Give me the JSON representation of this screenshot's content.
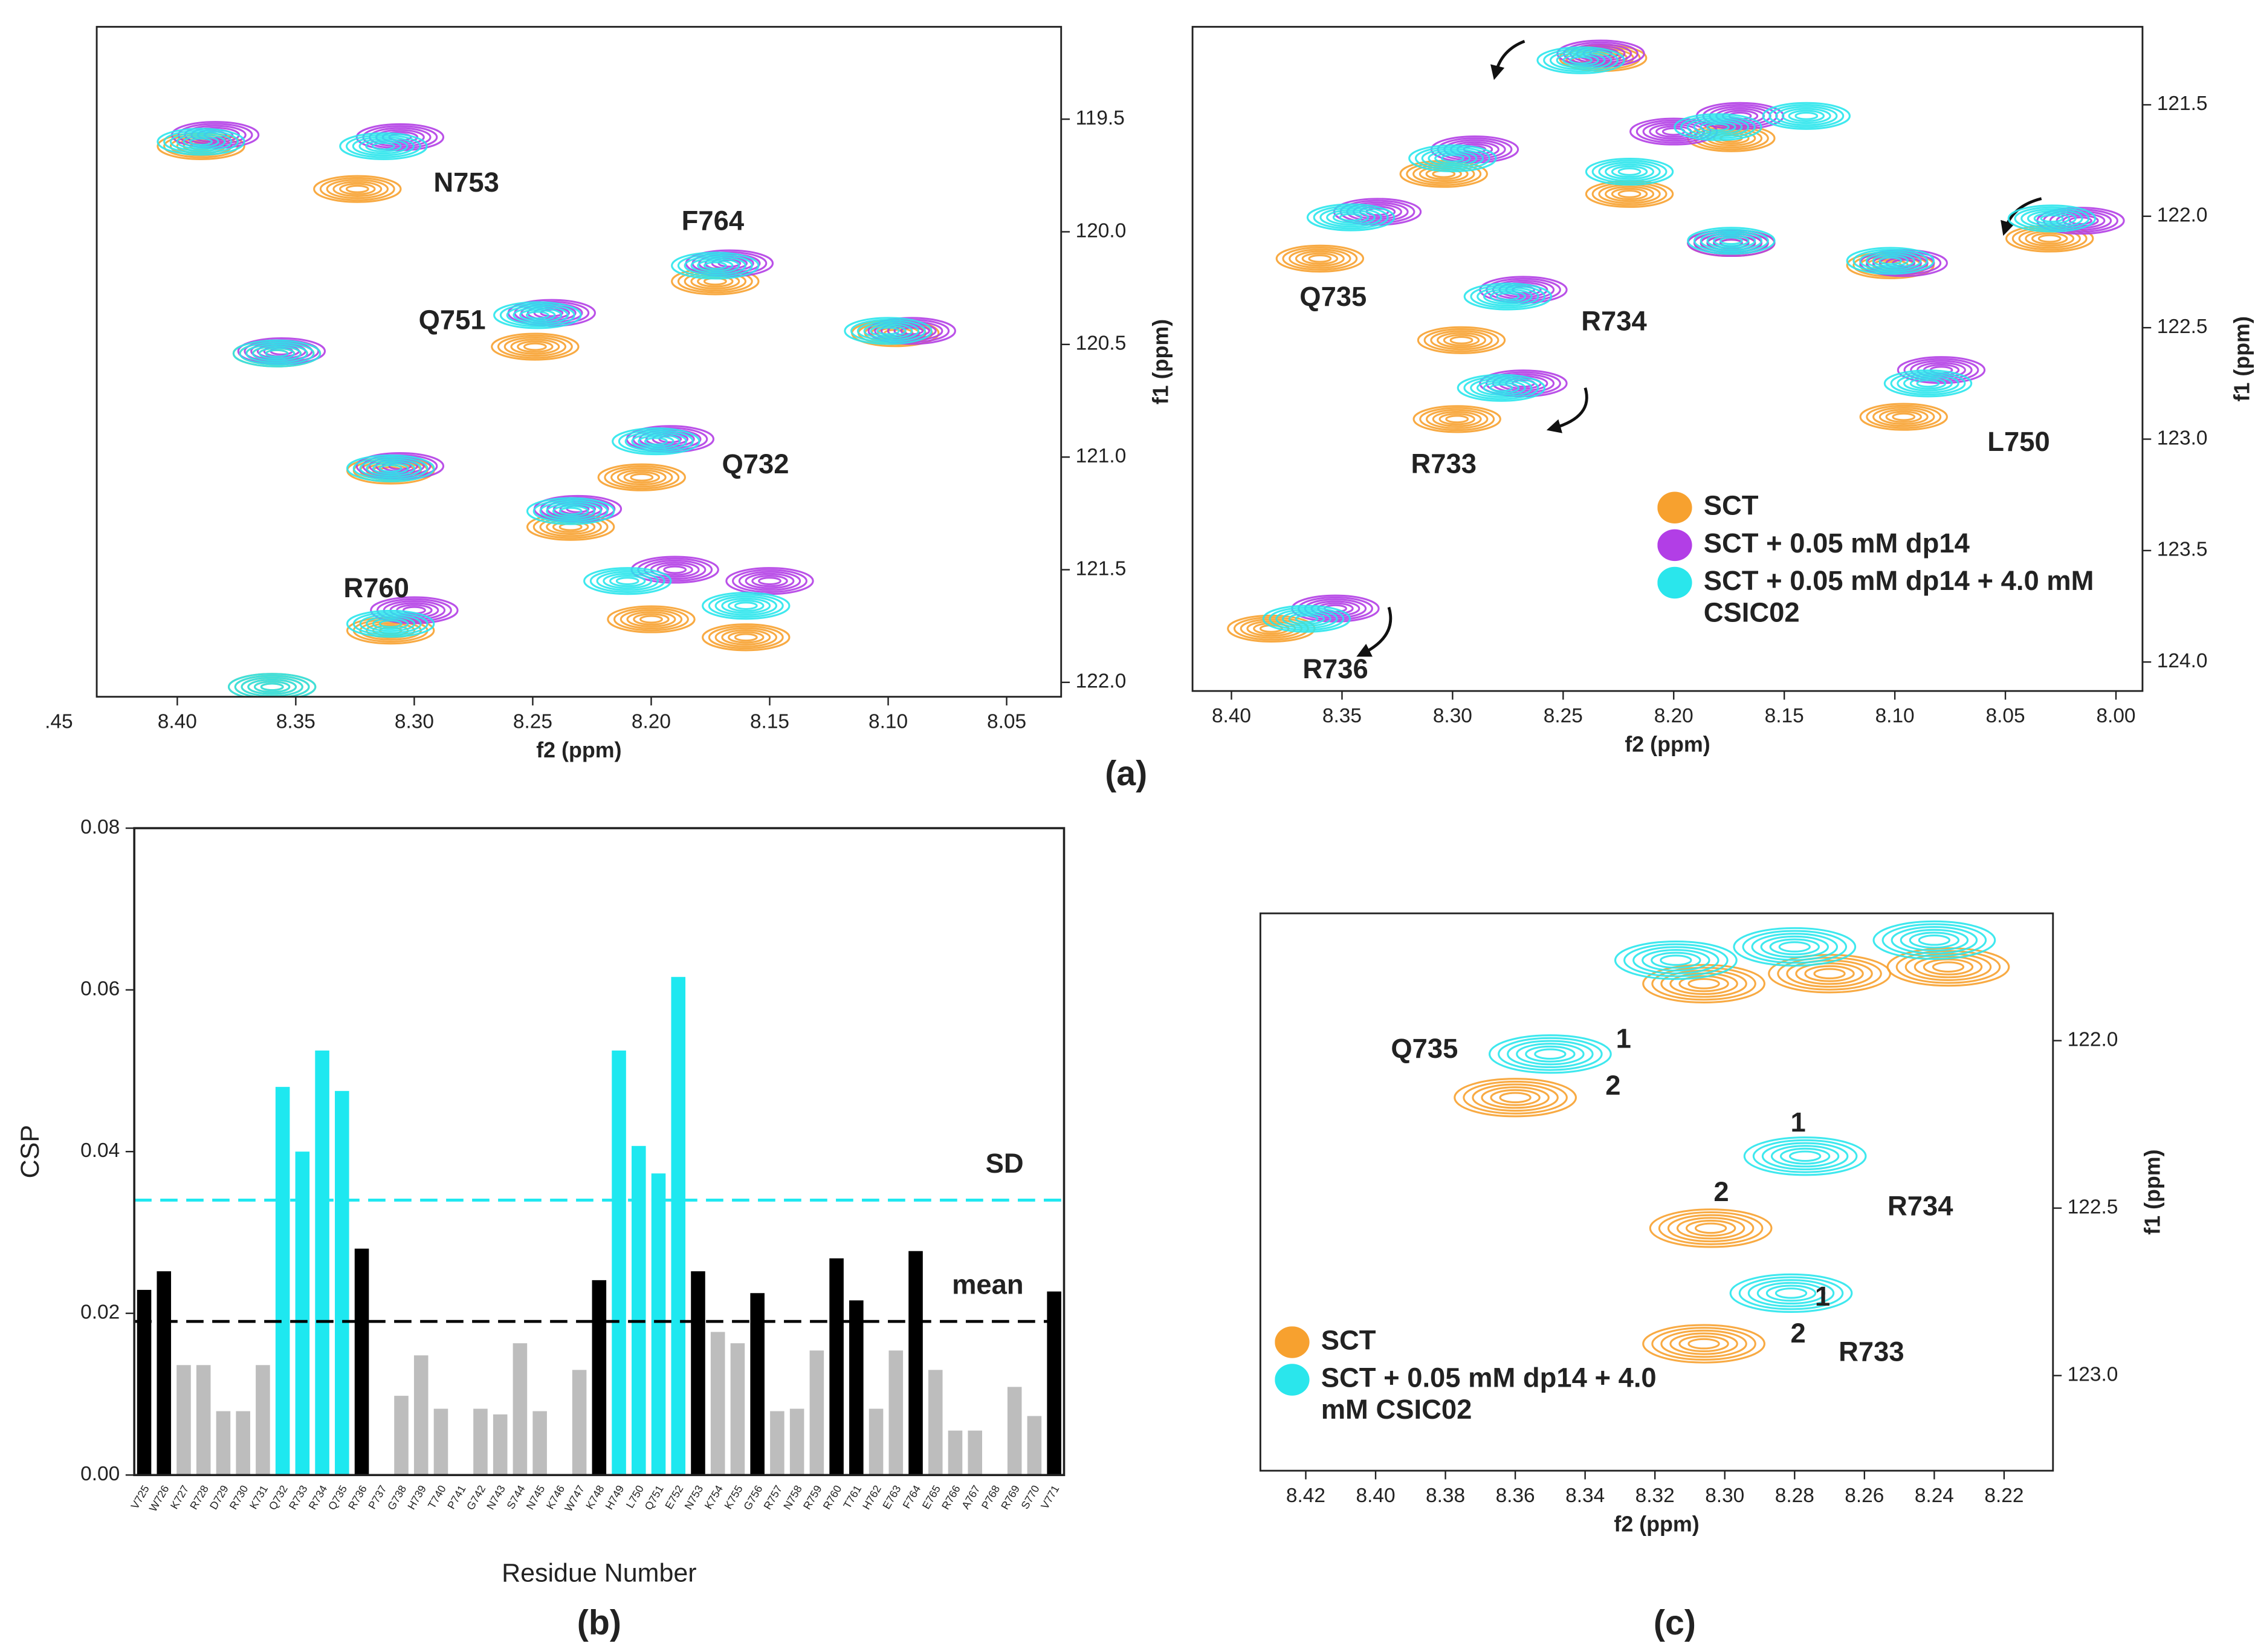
{
  "chart_data": [
    {
      "type": "contour",
      "xlabel": "f2 (ppm)",
      "ylabel": "f1 (ppm)",
      "xlim": [
        8.434,
        8.027
      ],
      "ylim": [
        119.09,
        122.064
      ],
      "xticks": [
        {
          "value": 8.45,
          "label": ".45"
        },
        {
          "value": 8.4,
          "label": "8.40"
        },
        8.35,
        {
          "value": 8.3,
          "label": "8.30"
        },
        8.25,
        {
          "value": 8.2,
          "label": "8.20"
        },
        8.15,
        {
          "value": 8.1,
          "label": "8.10"
        },
        8.05
      ],
      "yticks": [
        119.5,
        {
          "value": 120,
          "label": "120.0"
        },
        120.5,
        {
          "value": 121,
          "label": "121.0"
        },
        121.5,
        {
          "value": 122,
          "label": "122.0"
        }
      ],
      "series": [
        {
          "color": "#f7a12f",
          "x": [
            8.39,
            8.324,
            8.173,
            8.249,
            8.358,
            8.097,
            8.31,
            8.204,
            8.234,
            8.31,
            8.2,
            8.16,
            8.36
          ],
          "y": [
            119.62,
            119.81,
            120.22,
            120.51,
            120.54,
            120.45,
            121.06,
            121.09,
            121.31,
            121.77,
            121.72,
            121.8,
            122.02
          ]
        },
        {
          "color": "#b23ee6",
          "x": [
            8.384,
            8.306,
            8.167,
            8.242,
            8.356,
            8.09,
            8.306,
            8.192,
            8.231,
            8.3,
            8.19,
            8.15
          ],
          "y": [
            119.57,
            119.58,
            120.14,
            120.36,
            120.53,
            120.44,
            121.04,
            120.92,
            121.23,
            121.68,
            121.5,
            121.55
          ]
        },
        {
          "color": "#2ae6ec",
          "x": [
            8.39,
            8.313,
            8.173,
            8.248,
            8.358,
            8.1,
            8.31,
            8.198,
            8.234,
            8.31,
            8.21,
            8.16,
            8.36
          ],
          "y": [
            119.6,
            119.62,
            120.15,
            120.37,
            120.54,
            120.44,
            121.05,
            120.93,
            121.24,
            121.74,
            121.55,
            121.66,
            122.02
          ]
        }
      ],
      "annotations": [
        {
          "text": "N753",
          "x": 8.278,
          "y": 119.79
        },
        {
          "text": "F764",
          "x": 8.174,
          "y": 119.96
        },
        {
          "text": "Q751",
          "x": 8.284,
          "y": 120.4
        },
        {
          "text": "Q732",
          "x": 8.156,
          "y": 121.04
        },
        {
          "text": "R760",
          "x": 8.316,
          "y": 121.59
        }
      ]
    },
    {
      "type": "contour",
      "xlabel": "f2 (ppm)",
      "ylabel": "f1 (ppm)",
      "caption": "(a)",
      "xlim": [
        8.4176,
        7.988
      ],
      "ylim": [
        121.15,
        124.13
      ],
      "xticks": [
        {
          "value": 8.4,
          "label": "8.40"
        },
        8.35,
        {
          "value": 8.3,
          "label": "8.30"
        },
        8.25,
        {
          "value": 8.2,
          "label": "8.20"
        },
        8.15,
        {
          "value": 8.1,
          "label": "8.10"
        },
        8.05,
        {
          "value": 8,
          "label": "8.00"
        }
      ],
      "yticks": [
        121.5,
        {
          "value": 122,
          "label": "122.0"
        },
        122.5,
        {
          "value": 123,
          "label": "123.0"
        },
        123.5,
        {
          "value": 124,
          "label": "124.0"
        }
      ],
      "legend": "lower right",
      "series": [
        {
          "name": "SCT",
          "color": "#f7a12f",
          "x": [
            8.36,
            8.296,
            8.298,
            8.382,
            8.096,
            8.03,
            8.102,
            8.174,
            8.232,
            8.304,
            8.174,
            8.22
          ],
          "y": [
            122.19,
            122.556,
            122.91,
            123.85,
            122.9,
            122.1,
            122.22,
            122.12,
            121.29,
            121.81,
            121.65,
            121.9
          ]
        },
        {
          "name": "SCT + 0.05 mM dp14",
          "color": "#b23ee6",
          "x": [
            8.334,
            8.268,
            8.268,
            8.353,
            8.079,
            8.016,
            8.096,
            8.174,
            8.233,
            8.29,
            8.17,
            8.2
          ],
          "y": [
            121.98,
            122.33,
            122.75,
            123.76,
            122.69,
            122.02,
            122.21,
            122.12,
            121.27,
            121.7,
            121.55,
            121.62
          ]
        },
        {
          "name": "SCT + 0.05 mM dp14 + 4.0 mM CSIC02",
          "color": "#2ae6ec",
          "x": [
            8.346,
            8.275,
            8.278,
            8.366,
            8.085,
            8.029,
            8.102,
            8.174,
            8.242,
            8.3,
            8.18,
            8.22,
            8.14
          ],
          "y": [
            122.005,
            122.36,
            122.77,
            123.806,
            122.75,
            122.01,
            122.2,
            122.11,
            121.3,
            121.74,
            121.6,
            121.8,
            121.55
          ]
        }
      ],
      "annotations": [
        {
          "text": "Q735",
          "x": 8.354,
          "y": 122.37
        },
        {
          "text": "R734",
          "x": 8.227,
          "y": 122.48
        },
        {
          "text": "R733",
          "x": 8.304,
          "y": 123.12
        },
        {
          "text": "R736",
          "x": 8.353,
          "y": 124.04
        },
        {
          "text": "L750",
          "x": 8.044,
          "y": 123.02
        }
      ]
    },
    {
      "type": "bar",
      "ylabel": "CSP",
      "xlabel": "Residue Number",
      "caption": "(b)",
      "categories": [
        "V725",
        "W726",
        "K727",
        "R728",
        "D729",
        "R730",
        "K731",
        "Q732",
        "R733",
        "R734",
        "Q735",
        "R736",
        "P737",
        "G738",
        "H739",
        "T740",
        "P741",
        "G742",
        "N743",
        "S744",
        "N745",
        "K746",
        "W747",
        "K748",
        "H749",
        "L750",
        "Q751",
        "E752",
        "N753",
        "K754",
        "K755",
        "G756",
        "R757",
        "N758",
        "R759",
        "R760",
        "T761",
        "H762",
        "E763",
        "F764",
        "E765",
        "R766",
        "A767",
        "P768",
        "R769",
        "S770",
        "V771"
      ],
      "values": [
        0.0229,
        0.0252,
        0.0136,
        0.0136,
        0.0079,
        0.0079,
        0.0136,
        0.048,
        0.04,
        0.0525,
        0.0475,
        0.028,
        null,
        0.0098,
        0.0148,
        0.0082,
        null,
        0.0082,
        0.0075,
        0.0163,
        0.0079,
        null,
        0.013,
        0.0241,
        0.0525,
        0.0407,
        0.0373,
        0.0616,
        0.0252,
        0.0177,
        0.0163,
        0.0225,
        0.0079,
        0.0082,
        0.0154,
        0.0268,
        0.0216,
        0.0082,
        0.0154,
        0.0277,
        0.013,
        0.0055,
        0.0055,
        null,
        0.0109,
        0.0073,
        0.0227
      ],
      "colors": [
        "#000000",
        "#000000",
        "#bdbdbd",
        "#bdbdbd",
        "#bdbdbd",
        "#bdbdbd",
        "#bdbdbd",
        "#1ee8f0",
        "#1ee8f0",
        "#1ee8f0",
        "#1ee8f0",
        "#000000",
        "#bdbdbd",
        "#bdbdbd",
        "#bdbdbd",
        "#bdbdbd",
        "#bdbdbd",
        "#bdbdbd",
        "#bdbdbd",
        "#bdbdbd",
        "#bdbdbd",
        "#bdbdbd",
        "#bdbdbd",
        "#000000",
        "#1ee8f0",
        "#1ee8f0",
        "#1ee8f0",
        "#1ee8f0",
        "#000000",
        "#bdbdbd",
        "#bdbdbd",
        "#000000",
        "#bdbdbd",
        "#bdbdbd",
        "#bdbdbd",
        "#000000",
        "#000000",
        "#bdbdbd",
        "#bdbdbd",
        "#000000",
        "#bdbdbd",
        "#bdbdbd",
        "#bdbdbd",
        "#bdbdbd",
        "#bdbdbd",
        "#bdbdbd",
        "#000000"
      ],
      "ylim": [
        0,
        0.08
      ],
      "yticks": [
        {
          "value": 0,
          "label": "0.00"
        },
        {
          "value": 0.02,
          "label": "0.02"
        },
        {
          "value": 0.04,
          "label": "0.04"
        },
        {
          "value": 0.06,
          "label": "0.06"
        },
        {
          "value": 0.08,
          "label": "0.08"
        }
      ],
      "hlines": [
        {
          "value": 0.034,
          "label": "SD",
          "color": "#1ee8f0"
        },
        {
          "value": 0.019,
          "label": "mean",
          "color": "#000000"
        }
      ]
    },
    {
      "type": "contour",
      "xlabel": "f2 (ppm)",
      "ylabel": "f1 (ppm)",
      "caption": "(c)",
      "xlim": [
        8.433,
        8.206
      ],
      "ylim": [
        121.62,
        123.284
      ],
      "xticks": [
        8.42,
        {
          "value": 8.4,
          "label": "8.40"
        },
        8.38,
        8.36,
        8.34,
        8.32,
        {
          "value": 8.3,
          "label": "8.30"
        },
        8.28,
        8.26,
        8.24,
        8.22
      ],
      "yticks": [
        {
          "value": 122,
          "label": "122.0"
        },
        122.5,
        {
          "value": 123,
          "label": "123.0"
        }
      ],
      "legend": "lower left",
      "series": [
        {
          "name": "SCT",
          "color": "#f7a12f",
          "x": [
            8.36,
            8.304,
            8.306,
            8.306,
            8.236,
            8.27
          ],
          "y": [
            122.17,
            122.56,
            122.905,
            121.83,
            121.78,
            121.8
          ]
        },
        {
          "name": "SCT + 0.05 mM dp14 + 4.0 mM CSIC02",
          "color": "#2ae6ec",
          "x": [
            8.35,
            8.277,
            8.281,
            8.314,
            8.24,
            8.28
          ],
          "y": [
            122.04,
            122.345,
            122.754,
            121.76,
            121.7,
            121.72
          ]
        }
      ],
      "annotations": [
        {
          "text": "Q735",
          "x": 8.386,
          "y": 122.03
        },
        {
          "text": "R734",
          "x": 8.244,
          "y": 122.5
        },
        {
          "text": "R733",
          "x": 8.258,
          "y": 122.935
        },
        {
          "text": "1",
          "x": 8.329,
          "y": 122.0,
          "color": "#8a2ab8"
        },
        {
          "text": "2",
          "x": 8.332,
          "y": 122.14,
          "color": "#8a2ab8"
        },
        {
          "text": "1",
          "x": 8.279,
          "y": 122.25,
          "color": "#8a2ab8"
        },
        {
          "text": "2",
          "x": 8.301,
          "y": 122.457,
          "color": "#8a2ab8"
        },
        {
          "text": "1",
          "x": 8.272,
          "y": 122.77,
          "color": "#8a2ab8"
        },
        {
          "text": "2",
          "x": 8.279,
          "y": 122.88,
          "color": "#8a2ab8"
        }
      ]
    }
  ]
}
